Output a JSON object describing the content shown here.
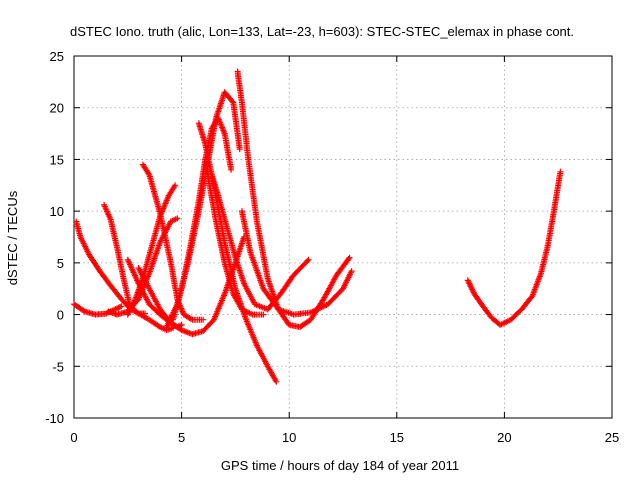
{
  "chart_data": {
    "type": "scatter",
    "title": "dSTEC Iono. truth (alic, Lon=133, Lat=-23, h=603): STEC-STEC_elemax in phase cont.",
    "xlabel": "GPS time / hours of day 184 of year 2011",
    "ylabel": "dSTEC  / TECUs",
    "xlim": [
      0,
      25
    ],
    "ylim": [
      -10,
      25
    ],
    "xticks": [
      "0",
      "5",
      "10",
      "15",
      "20",
      "25"
    ],
    "yticks": [
      "-10",
      "-5",
      "0",
      "5",
      "10",
      "15",
      "20",
      "25"
    ],
    "grid": true,
    "marker": "+",
    "color": "#ff0000",
    "series": [
      {
        "x": [
          0.0,
          0.5,
          1.0,
          1.5,
          2.0,
          2.2
        ],
        "y": [
          1.0,
          0.3,
          0.0,
          0.1,
          0.6,
          0.8
        ]
      },
      {
        "x": [
          0.1,
          0.3,
          0.7,
          1.2,
          1.7,
          2.2,
          2.6,
          3.0,
          3.3
        ],
        "y": [
          9.0,
          7.5,
          5.8,
          4.2,
          2.8,
          1.5,
          0.6,
          0.1,
          0.1
        ]
      },
      {
        "x": [
          1.4,
          1.7,
          2.0,
          2.3,
          2.6,
          3.0,
          3.5,
          4.0,
          4.3,
          4.6
        ],
        "y": [
          10.6,
          9.2,
          6.5,
          3.5,
          0.8,
          0.1,
          -0.5,
          -1.2,
          -1.5,
          -1.3
        ]
      },
      {
        "x": [
          1.6,
          2.0,
          2.5,
          3.0,
          3.5,
          4.0,
          4.5,
          4.8
        ],
        "y": [
          0.3,
          0.0,
          0.3,
          1.5,
          4.0,
          7.0,
          9.0,
          9.3
        ]
      },
      {
        "x": [
          2.5,
          3.0,
          3.5,
          4.0,
          4.5,
          4.8,
          5.0
        ],
        "y": [
          5.3,
          3.0,
          1.0,
          0.0,
          -0.8,
          -1.2,
          -1.0
        ]
      },
      {
        "x": [
          3.2,
          3.5,
          4.0,
          4.5,
          4.8,
          5.1,
          5.5,
          6.0
        ],
        "y": [
          14.5,
          13.5,
          9.8,
          5.0,
          1.5,
          0.0,
          -0.5,
          -0.5
        ]
      },
      {
        "x": [
          2.5,
          2.8,
          3.2,
          3.6,
          4.0,
          4.4,
          4.7
        ],
        "y": [
          0.0,
          1.2,
          3.5,
          6.5,
          9.5,
          11.5,
          12.5
        ]
      },
      {
        "x": [
          3.0,
          3.5,
          4.0,
          4.5,
          5.0,
          5.5,
          6.0,
          6.5,
          7.0,
          7.5,
          7.9
        ],
        "y": [
          4.5,
          2.5,
          0.5,
          -0.8,
          -1.5,
          -1.9,
          -1.6,
          -0.5,
          2.0,
          5.0,
          7.5
        ]
      },
      {
        "x": [
          4.3,
          4.8,
          5.3,
          5.8,
          6.2,
          6.6,
          7.0,
          7.4,
          7.7
        ],
        "y": [
          -1.2,
          1.0,
          5.0,
          10.0,
          14.5,
          19.0,
          21.5,
          20.5,
          16.0
        ]
      },
      {
        "x": [
          4.6,
          5.0,
          5.4,
          5.8,
          6.1,
          6.4,
          6.7,
          7.0,
          7.3
        ],
        "y": [
          -0.5,
          2.5,
          6.5,
          11.0,
          15.0,
          18.0,
          19.0,
          17.5,
          14.0
        ]
      },
      {
        "x": [
          5.8,
          6.1,
          6.5,
          7.0,
          7.5,
          8.0,
          8.5,
          9.0,
          9.4
        ],
        "y": [
          18.5,
          16.5,
          12.5,
          7.0,
          2.5,
          -0.5,
          -3.0,
          -5.0,
          -6.5
        ]
      },
      {
        "x": [
          6.1,
          6.3,
          6.6,
          7.0,
          7.4,
          7.8,
          8.3,
          8.8
        ],
        "y": [
          15.0,
          12.5,
          9.0,
          5.0,
          2.0,
          0.5,
          0.0,
          0.0
        ]
      },
      {
        "x": [
          6.4,
          6.7,
          7.1,
          7.5,
          7.9,
          8.4,
          9.0,
          9.6,
          10.2,
          10.9
        ],
        "y": [
          13.5,
          11.5,
          8.5,
          5.5,
          3.0,
          1.0,
          0.5,
          2.0,
          3.8,
          5.3
        ]
      },
      {
        "x": [
          7.6,
          7.8,
          8.1,
          8.5,
          9.0,
          9.5,
          10.0,
          10.5,
          11.0,
          11.6,
          12.2,
          12.8
        ],
        "y": [
          23.5,
          20.5,
          15.0,
          9.0,
          3.5,
          0.5,
          -1.0,
          -1.2,
          -0.5,
          1.5,
          3.8,
          5.5
        ]
      },
      {
        "x": [
          7.8,
          8.2,
          8.8,
          9.5,
          10.2,
          11.0,
          11.8,
          12.5,
          12.9
        ],
        "y": [
          10.0,
          6.0,
          2.5,
          0.5,
          0.0,
          0.2,
          1.0,
          2.5,
          4.2
        ]
      },
      {
        "x": [
          18.3,
          18.6,
          19.0,
          19.4,
          19.8,
          20.3,
          20.8,
          21.3,
          21.7,
          22.0,
          22.3,
          22.6
        ],
        "y": [
          3.3,
          2.0,
          0.8,
          -0.3,
          -1.0,
          -0.5,
          0.5,
          1.8,
          4.0,
          6.5,
          10.0,
          13.8
        ]
      }
    ]
  }
}
